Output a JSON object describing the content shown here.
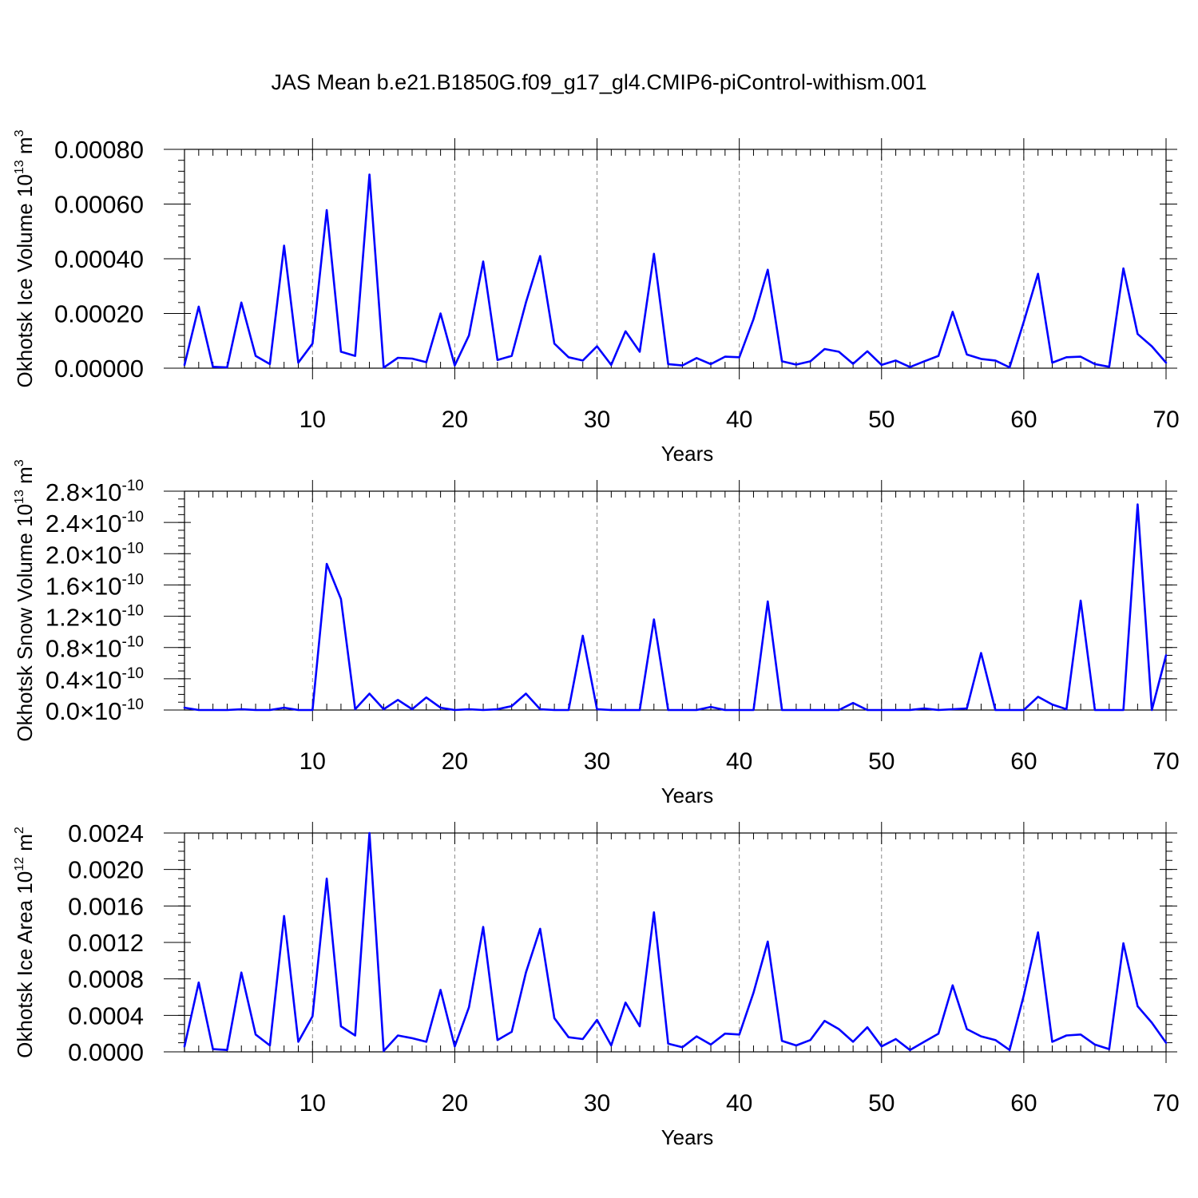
{
  "title": "JAS Mean b.e21.B1850G.f09_g17_gl4.CMIP6-piControl-withism.001",
  "line_color": "#0000ff",
  "chart_data": [
    {
      "type": "line",
      "xlabel": "Years",
      "ylabel_main": "Okhotsk Ice Volume 10",
      "ylabel_exp": "13",
      "ylabel_unit": " m",
      "ylabel_unit_exp": "3",
      "xlim": [
        1,
        70
      ],
      "ylim": [
        0,
        0.0008
      ],
      "x_ticks": [
        10,
        20,
        30,
        40,
        50,
        60,
        70
      ],
      "y_ticks": [
        0,
        0.0002,
        0.0004,
        0.0006,
        0.0008
      ],
      "y_tick_labels": [
        "0.00000",
        "0.00020",
        "0.00040",
        "0.00060",
        "0.00080"
      ],
      "y_minor_step": 4e-05,
      "y": [
        1.2e-05,
        0.000225,
        5e-06,
        3e-06,
        0.00024,
        4.5e-05,
        1.5e-05,
        0.000448,
        2e-05,
        9e-05,
        0.000578,
        6e-05,
        4.5e-05,
        0.000708,
        2e-06,
        3.8e-05,
        3.5e-05,
        2.2e-05,
        0.0002,
        1e-05,
        0.00012,
        0.00039,
        3e-05,
        4.5e-05,
        0.00024,
        0.00041,
        9e-05,
        4e-05,
        2.8e-05,
        8e-05,
        1.2e-05,
        0.000135,
        6e-05,
        0.000418,
        1.5e-05,
        1e-05,
        3.7e-05,
        1.5e-05,
        4.2e-05,
        4e-05,
        0.00018,
        0.00036,
        2.5e-05,
        1.3e-05,
        2.5e-05,
        7e-05,
        6e-05,
        1.6e-05,
        6.2e-05,
        1.2e-05,
        2.8e-05,
        4e-06,
        2.5e-05,
        4.5e-05,
        0.000206,
        5e-05,
        3.4e-05,
        2.8e-05,
        3e-06,
        0.00017,
        0.000345,
        2e-05,
        4e-05,
        4.2e-05,
        1.5e-05,
        5e-06,
        0.000365,
        0.000125,
        8e-05,
        2e-05
      ]
    },
    {
      "type": "line",
      "xlabel": "Years",
      "ylabel_main": "Okhotsk Snow Volume 10",
      "ylabel_exp": "13",
      "ylabel_unit": " m",
      "ylabel_unit_exp": "3",
      "xlim": [
        1,
        70
      ],
      "ylim": [
        0,
        2.8e-10
      ],
      "x_ticks": [
        10,
        20,
        30,
        40,
        50,
        60,
        70
      ],
      "y_ticks": [
        0,
        4e-11,
        8e-11,
        1.2e-10,
        1.6e-10,
        2e-10,
        2.4e-10,
        2.8e-10
      ],
      "y_tick_mantissas": [
        "0.0",
        "0.4",
        "0.8",
        "1.2",
        "1.6",
        "2.0",
        "2.4",
        "2.8"
      ],
      "y_tick_base": "10",
      "y_tick_exp": "-10",
      "y_minor_step": 1e-11,
      "y": [
        3e-12,
        0,
        0,
        0,
        1e-12,
        0,
        0,
        3e-12,
        0,
        0,
        1.87e-10,
        1.42e-10,
        1e-12,
        2.1e-11,
        1e-12,
        1.3e-11,
        1e-12,
        1.6e-11,
        3e-12,
        0,
        1e-12,
        0,
        1e-12,
        5e-12,
        2.1e-11,
        1e-12,
        0,
        0,
        9.5e-11,
        1e-12,
        0,
        0,
        0,
        1.16e-10,
        0,
        0,
        0,
        4e-12,
        0,
        0,
        0,
        1.39e-10,
        0,
        0,
        0,
        0,
        0,
        9e-12,
        0,
        0,
        0,
        0,
        2e-12,
        0,
        1e-12,
        2e-12,
        7.3e-11,
        0,
        0,
        0,
        1.7e-11,
        7e-12,
        1e-12,
        1.4e-10,
        0,
        0,
        0,
        2.63e-10,
        0,
        7e-11
      ]
    },
    {
      "type": "line",
      "xlabel": "Years",
      "ylabel_main": "Okhotsk Ice Area 10",
      "ylabel_exp": "12",
      "ylabel_unit": " m",
      "ylabel_unit_exp": "2",
      "xlim": [
        1,
        70
      ],
      "ylim": [
        0,
        0.0024
      ],
      "x_ticks": [
        10,
        20,
        30,
        40,
        50,
        60,
        70
      ],
      "y_ticks": [
        0,
        0.0004,
        0.0008,
        0.0012,
        0.0016,
        0.002,
        0.0024
      ],
      "y_tick_labels": [
        "0.0000",
        "0.0004",
        "0.0008",
        "0.0012",
        "0.0016",
        "0.0020",
        "0.0024"
      ],
      "y_minor_step": 0.0001,
      "y": [
        6e-05,
        0.00076,
        3e-05,
        2e-05,
        0.00087,
        0.00019,
        7e-05,
        0.00149,
        0.00011,
        0.00039,
        0.0019,
        0.00028,
        0.00018,
        0.0024,
        1e-05,
        0.00018,
        0.00015,
        0.00011,
        0.00068,
        6e-05,
        0.00049,
        0.00137,
        0.00013,
        0.00022,
        0.00087,
        0.00135,
        0.00037,
        0.00016,
        0.00014,
        0.00035,
        7e-05,
        0.00054,
        0.00028,
        0.00153,
        9e-05,
        5e-05,
        0.00017,
        8e-05,
        0.0002,
        0.00019,
        0.00065,
        0.00121,
        0.00012,
        7e-05,
        0.00013,
        0.00034,
        0.00025,
        0.00011,
        0.00027,
        6e-05,
        0.00014,
        2e-05,
        0.00011,
        0.0002,
        0.00073,
        0.00025,
        0.00017,
        0.00013,
        2e-05,
        0.00062,
        0.00131,
        0.00011,
        0.00018,
        0.00019,
        8e-05,
        3e-05,
        0.00119,
        0.0005,
        0.00032,
        0.0001
      ]
    }
  ]
}
